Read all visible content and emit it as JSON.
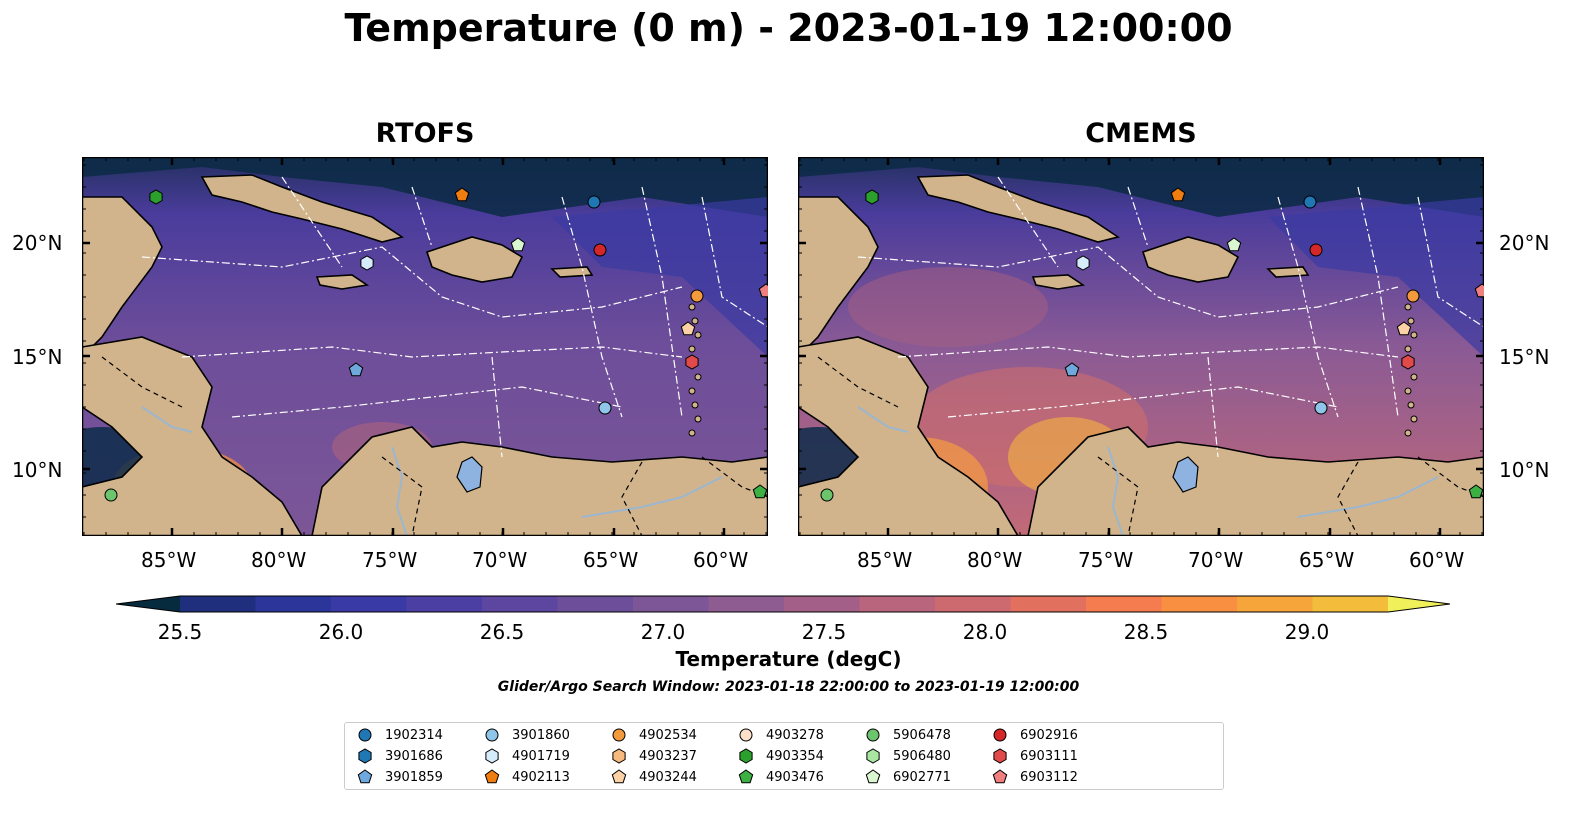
{
  "title": "Temperature (0 m) - 2023-01-19 12:00:00",
  "panels": [
    {
      "title": "RTOFS"
    },
    {
      "title": "CMEMS"
    }
  ],
  "lon_ticks": [
    "85°W",
    "80°W",
    "75°W",
    "70°W",
    "65°W",
    "60°W"
  ],
  "lat_ticks": [
    "20°N",
    "15°N",
    "10°N"
  ],
  "colorbar": {
    "label": "Temperature (degC)",
    "ticks": [
      "25.5",
      "26.0",
      "26.5",
      "27.0",
      "27.5",
      "28.0",
      "28.5",
      "29.0"
    ],
    "min": 25.5,
    "max": 29.25,
    "colors": [
      "#062a3e",
      "#102a5a",
      "#1f2f7d",
      "#2b359a",
      "#3a3aa6",
      "#4c3fa3",
      "#5d469f",
      "#6c4e9a",
      "#7d5697",
      "#8f5c91",
      "#a35f88",
      "#b8657d",
      "#cd6a6f",
      "#e2705f",
      "#f47c4e",
      "#f98f40",
      "#f6a53b",
      "#f3bd3b",
      "#f3d545",
      "#eff05a"
    ]
  },
  "search_window": "Glider/Argo Search Window: 2023-01-18 22:00:00 to 2023-01-19 12:00:00",
  "legend": [
    {
      "id": "1902314",
      "marker": "circle",
      "color": "#1f77b4"
    },
    {
      "id": "3901686",
      "marker": "hexagon",
      "color": "#1f77b4"
    },
    {
      "id": "3901859",
      "marker": "pentagon",
      "color": "#6fa8dc"
    },
    {
      "id": "3901860",
      "marker": "circle",
      "color": "#8ec5e8"
    },
    {
      "id": "4901719",
      "marker": "hexagon",
      "color": "#d6ecfa"
    },
    {
      "id": "4902113",
      "marker": "pentagon",
      "color": "#f07d10"
    },
    {
      "id": "4902534",
      "marker": "circle",
      "color": "#f39a3c"
    },
    {
      "id": "4903237",
      "marker": "hexagon",
      "color": "#f7b97d"
    },
    {
      "id": "4903244",
      "marker": "pentagon",
      "color": "#fbd2a6"
    },
    {
      "id": "4903278",
      "marker": "circle",
      "color": "#fde0c9"
    },
    {
      "id": "4903354",
      "marker": "hexagon",
      "color": "#2ca02c"
    },
    {
      "id": "4903476",
      "marker": "pentagon",
      "color": "#3cb043"
    },
    {
      "id": "5906478",
      "marker": "circle",
      "color": "#6cc56c"
    },
    {
      "id": "5906480",
      "marker": "hexagon",
      "color": "#a8e6a2"
    },
    {
      "id": "6902771",
      "marker": "pentagon",
      "color": "#d9f7d0"
    },
    {
      "id": "6902916",
      "marker": "circle",
      "color": "#d62728"
    },
    {
      "id": "6903111",
      "marker": "hexagon",
      "color": "#e04a4a"
    },
    {
      "id": "6903112",
      "marker": "pentagon",
      "color": "#f08080"
    }
  ],
  "map_colors": {
    "land": "#d2b48c",
    "ocean_mid": "#6a4a98",
    "river": "#9cb6cf"
  }
}
